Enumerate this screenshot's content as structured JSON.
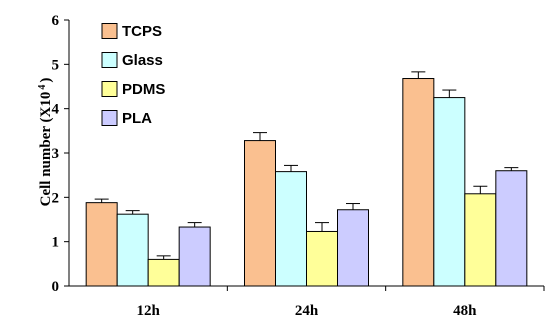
{
  "chart_data": {
    "type": "bar",
    "categories": [
      "12h",
      "24h",
      "48h"
    ],
    "series": [
      {
        "name": "TCPS",
        "color": "#FAC090",
        "values": [
          1.88,
          3.28,
          4.68
        ],
        "errors": [
          0.08,
          0.18,
          0.15
        ]
      },
      {
        "name": "Glass",
        "color": "#CCFFFF",
        "values": [
          1.62,
          2.58,
          4.25
        ],
        "errors": [
          0.08,
          0.14,
          0.17
        ]
      },
      {
        "name": "PDMS",
        "color": "#FFFF99",
        "values": [
          0.6,
          1.23,
          2.08
        ],
        "errors": [
          0.08,
          0.2,
          0.17
        ]
      },
      {
        "name": "PLA",
        "color": "#CCCCFF",
        "values": [
          1.33,
          1.72,
          2.6
        ],
        "errors": [
          0.1,
          0.14,
          0.07
        ]
      }
    ],
    "xlabel": "",
    "ylabel": "Cell number (X10",
    "ylabel_superscript": "4",
    "ylabel_suffix": ")",
    "ylim": [
      0,
      6
    ],
    "yticks": [
      0,
      1,
      2,
      3,
      4,
      5,
      6
    ],
    "grid": false,
    "legend_position": "top-left",
    "error_bars": true
  }
}
